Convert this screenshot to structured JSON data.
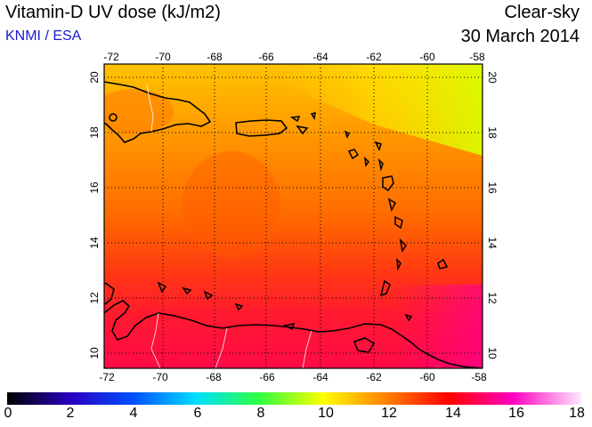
{
  "header": {
    "title": "Vitamin-D UV dose (kJ/m2)",
    "credit": "KNMI / ESA",
    "sky": "Clear-sky",
    "date": "30 March 2014"
  },
  "map": {
    "lon_ticks": [
      "-72",
      "-70",
      "-68",
      "-66",
      "-64",
      "-62",
      "-60",
      "-58"
    ],
    "lat_ticks": [
      "10",
      "12",
      "14",
      "16",
      "18",
      "20"
    ],
    "lon_range": [
      -72,
      -58
    ],
    "lat_range": [
      9.5,
      20.5
    ],
    "gridlines": true
  },
  "colorbar": {
    "labels": [
      "0",
      "2",
      "4",
      "6",
      "8",
      "10",
      "12",
      "14",
      "16",
      "18"
    ],
    "range": [
      0,
      18
    ]
  }
}
